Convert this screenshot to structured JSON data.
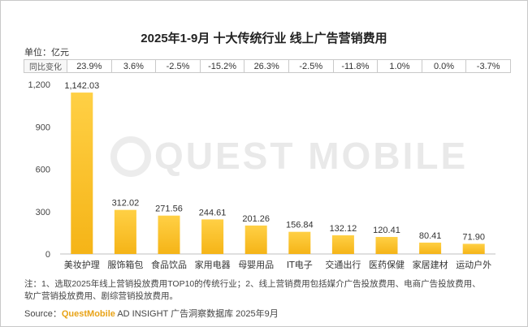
{
  "header": {
    "title": "2025年1-9月 十大传统行业 线上广告营销费用",
    "unit": "单位：亿元"
  },
  "yoy": {
    "label": "同比变化",
    "values": [
      "23.9%",
      "3.6%",
      "-2.5%",
      "-15.2%",
      "26.3%",
      "-2.5%",
      "-11.8%",
      "1.0%",
      "0.0%",
      "-3.7%"
    ]
  },
  "watermark": "QUEST MOBILE",
  "chart_data": {
    "type": "bar",
    "title": "2025年1-9月 十大传统行业 线上广告营销费用",
    "ylabel": "单位：亿元",
    "categories": [
      "美妆护理",
      "服饰箱包",
      "食品饮品",
      "家用电器",
      "母婴用品",
      "IT电子",
      "交通出行",
      "医药保健",
      "家居建材",
      "运动户外"
    ],
    "values": [
      1142.03,
      312.02,
      271.56,
      244.61,
      201.26,
      156.84,
      132.12,
      120.41,
      80.41,
      71.9
    ],
    "value_labels": [
      "1,142.03",
      "312.02",
      "271.56",
      "244.61",
      "201.26",
      "156.84",
      "132.12",
      "120.41",
      "80.41",
      "71.90"
    ],
    "ylim": [
      0,
      1200
    ],
    "yticks": [
      0,
      300,
      600,
      900,
      1200
    ],
    "ytick_labels": [
      "0",
      "300",
      "600",
      "900",
      "1,200"
    ],
    "bar_color": "#f5b417",
    "grid": false
  },
  "footer": {
    "note_line1": "注：1、选取2025年线上营销投放费用TOP10的传统行业；2、线上营销费用包括媒介广告投放费用、电商广告投放费用、",
    "note_line2": "软广营销投放费用、剧综营销投放费用。",
    "source_prefix": "Source：",
    "source_brand": "QuestMobile",
    "source_suffix": " AD INSIGHT 广告洞察数据库 2025年9月"
  }
}
